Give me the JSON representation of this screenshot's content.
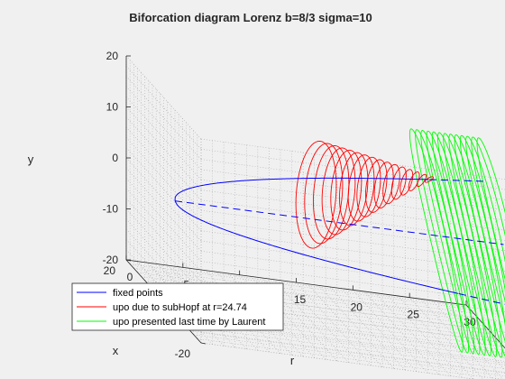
{
  "chart_data": {
    "type": "line",
    "title": "Biforcation diagram Lorenz b=8/3 sigma=10",
    "xlabel": "r",
    "ylabel": "x",
    "zlabel": "y",
    "r_ticks": [
      "0",
      "5",
      "10",
      "15",
      "20",
      "25",
      "30"
    ],
    "x_ticks": [
      "-20",
      "0",
      "20"
    ],
    "y_ticks": [
      "-20",
      "-10",
      "0",
      "10",
      "20"
    ],
    "r_range": [
      0,
      30
    ],
    "x_range": [
      -20,
      20
    ],
    "y_range": [
      -20,
      20
    ],
    "grid": true,
    "legend_position": "bottom-left",
    "series": [
      {
        "name": "fixed points",
        "color": "#0000ff",
        "style": "solid line (stable), dashed line (unstable)",
        "note": "fixed points x = y = ±sqrt(b(r-1)) for r from 1 to 30, and origin x = y = 0"
      },
      {
        "name": "upo due to subHopf at r=24.74",
        "color": "#ff0000",
        "r_start": 13.926,
        "r_end": 24.74
      },
      {
        "name": "upo presented last time by Laurent",
        "color": "#00ff00",
        "r_start": 24.06,
        "r_end": 30
      }
    ]
  }
}
